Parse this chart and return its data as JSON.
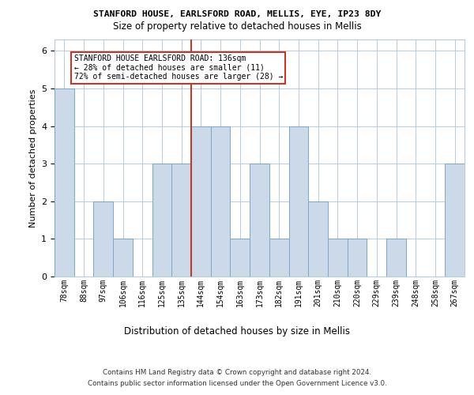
{
  "title1": "STANFORD HOUSE, EARLSFORD ROAD, MELLIS, EYE, IP23 8DY",
  "title2": "Size of property relative to detached houses in Mellis",
  "xlabel": "Distribution of detached houses by size in Mellis",
  "ylabel": "Number of detached properties",
  "categories": [
    "78sqm",
    "88sqm",
    "97sqm",
    "106sqm",
    "116sqm",
    "125sqm",
    "135sqm",
    "144sqm",
    "154sqm",
    "163sqm",
    "173sqm",
    "182sqm",
    "191sqm",
    "201sqm",
    "210sqm",
    "220sqm",
    "229sqm",
    "239sqm",
    "248sqm",
    "258sqm",
    "267sqm"
  ],
  "values": [
    5,
    0,
    2,
    1,
    0,
    3,
    3,
    4,
    4,
    1,
    3,
    1,
    4,
    2,
    1,
    1,
    0,
    1,
    0,
    0,
    3
  ],
  "bar_color": "#ccd9e8",
  "bar_edge_color": "#7ba7c9",
  "vline_color": "#c0392b",
  "vline_bar_index": 6,
  "annotation_text": "STANFORD HOUSE EARLSFORD ROAD: 136sqm\n← 28% of detached houses are smaller (11)\n72% of semi-detached houses are larger (28) →",
  "annotation_box_color": "#c0392b",
  "ylim": [
    0,
    6.3
  ],
  "yticks": [
    0,
    1,
    2,
    3,
    4,
    5,
    6
  ],
  "footnote1": "Contains HM Land Registry data © Crown copyright and database right 2024.",
  "footnote2": "Contains public sector information licensed under the Open Government Licence v3.0.",
  "bg_color": "#ffffff",
  "grid_color": "#b8cce0"
}
